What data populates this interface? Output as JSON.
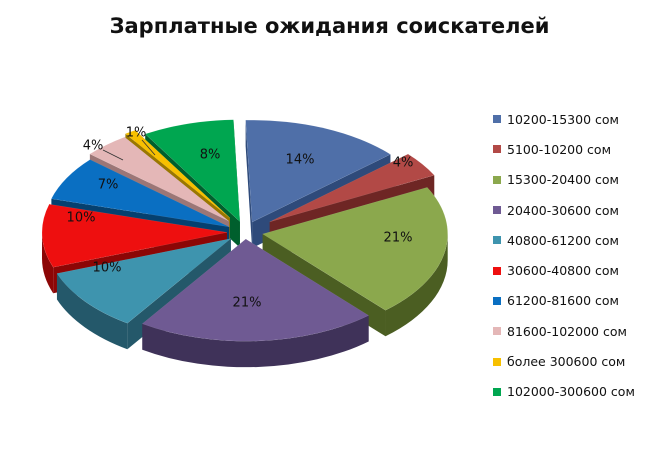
{
  "chart_data": {
    "type": "pie",
    "title": "Зарплатные ожидания соискателей",
    "legend_position": "right",
    "slices": [
      {
        "name": "10200-15300 сом",
        "value": 14,
        "label": "14%",
        "color": "#4F6FA8",
        "side": "#2E4A7A"
      },
      {
        "name": "5100-10200 сом",
        "value": 4,
        "label": "4%",
        "color": "#B24946",
        "side": "#6E2624"
      },
      {
        "name": "15300-20400 сом",
        "value": 21,
        "label": "21%",
        "color": "#8BA84D",
        "side": "#4B5E22"
      },
      {
        "name": "20400-30600 сом",
        "value": 21,
        "label": "21%",
        "color": "#6F5A93",
        "side": "#3F3259"
      },
      {
        "name": "40800-61200 сом",
        "value": 10,
        "label": "10%",
        "color": "#3E94AE",
        "side": "#24586A"
      },
      {
        "name": "30600-40800 сом",
        "value": 10,
        "label": "10%",
        "color": "#EE0F0F",
        "side": "#8C0606"
      },
      {
        "name": "61200-81600 сом",
        "value": 7,
        "label": "7%",
        "color": "#0A6FC2",
        "side": "#05406F"
      },
      {
        "name": "81600-102000 сом",
        "value": 4,
        "label": "4%",
        "color": "#E4B7B7",
        "side": "#9C7676"
      },
      {
        "name": "более 300600 сом",
        "value": 1,
        "label": "1%",
        "color": "#F7C000",
        "side": "#9A7700"
      },
      {
        "name": "102000-300600 сом",
        "value": 8,
        "label": "8%",
        "color": "#00A650",
        "side": "#005F2D"
      }
    ]
  }
}
